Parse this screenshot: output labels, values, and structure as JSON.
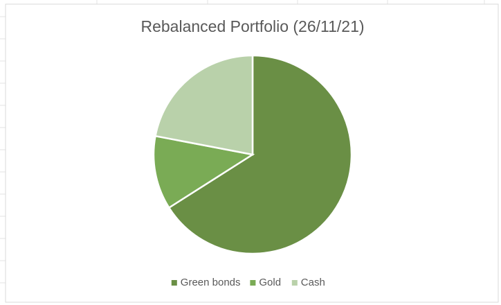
{
  "chart_data": {
    "type": "pie",
    "title": "Rebalanced Portfolio (26/11/21)",
    "categories": [
      "Green bonds",
      "Gold",
      "Cash"
    ],
    "values": [
      66,
      12,
      22
    ],
    "colors": [
      "#6a8f45",
      "#7aab55",
      "#b9d1aa"
    ],
    "legend": "bottom"
  }
}
